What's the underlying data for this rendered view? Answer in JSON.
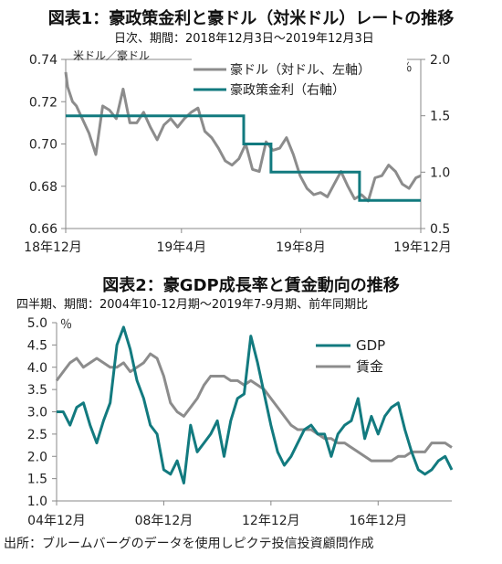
{
  "figure1": {
    "title": "図表1：豪政策金利と豪ドル（対米ドル）レートの推移",
    "subtitle": "日次、期間：2018年12月3日～2019年12月3日",
    "left_unit": "米ドル／豪ドル",
    "right_unit": "％",
    "legend": [
      "豪ドル（対ドル、左軸）",
      "豪政策金利（右軸）"
    ]
  },
  "figure2": {
    "title": "図表2：豪GDP成長率と賃金動向の推移",
    "subtitle": "四半期、期間：2004年10-12月期～2019年7-9月期、前年同期比",
    "y_unit": "％",
    "legend": [
      "GDP",
      "賃金"
    ]
  },
  "source": "出所：ブルームバーグのデータを使用しピクテ投信投資顧問作成",
  "colors": {
    "grey": "#8c8c8c",
    "teal": "#127a7f",
    "axis": "#888888"
  },
  "chart_data": [
    {
      "type": "line",
      "x_ticks": [
        "18年12月",
        "19年4月",
        "19年8月",
        "19年12月"
      ],
      "xlim": [
        "2018-12-03",
        "2019-12-03"
      ],
      "y_left_ticks": [
        "0.74",
        "0.72",
        "0.70",
        "0.68",
        "0.66"
      ],
      "y_left_lim": [
        0.66,
        0.74
      ],
      "y_right_ticks": [
        "2.0",
        "1.5",
        "1.0",
        "0.5"
      ],
      "y_right_lim": [
        0.5,
        2.0
      ],
      "grid": false,
      "legend_position": "top-right",
      "series": [
        {
          "name": "豪ドル（対ドル、左軸）",
          "axis": "left",
          "x": [
            "2018-12-03",
            "2018-12-05",
            "2018-12-10",
            "2018-12-14",
            "2018-12-20",
            "2018-12-27",
            "2019-01-03",
            "2019-01-10",
            "2019-01-17",
            "2019-01-24",
            "2019-01-31",
            "2019-02-07",
            "2019-02-14",
            "2019-02-21",
            "2019-02-28",
            "2019-03-07",
            "2019-03-14",
            "2019-03-21",
            "2019-03-28",
            "2019-04-04",
            "2019-04-11",
            "2019-04-18",
            "2019-04-25",
            "2019-05-02",
            "2019-05-09",
            "2019-05-16",
            "2019-05-23",
            "2019-05-30",
            "2019-06-06",
            "2019-06-13",
            "2019-06-20",
            "2019-06-27",
            "2019-07-04",
            "2019-07-11",
            "2019-07-18",
            "2019-07-25",
            "2019-08-01",
            "2019-08-08",
            "2019-08-15",
            "2019-08-22",
            "2019-08-29",
            "2019-09-05",
            "2019-09-12",
            "2019-09-19",
            "2019-09-26",
            "2019-10-03",
            "2019-10-10",
            "2019-10-17",
            "2019-10-24",
            "2019-10-31",
            "2019-11-07",
            "2019-11-14",
            "2019-11-21",
            "2019-11-28",
            "2019-12-03"
          ],
          "values": [
            0.734,
            0.727,
            0.72,
            0.718,
            0.712,
            0.705,
            0.695,
            0.718,
            0.716,
            0.712,
            0.726,
            0.71,
            0.71,
            0.715,
            0.708,
            0.702,
            0.709,
            0.712,
            0.708,
            0.712,
            0.715,
            0.717,
            0.706,
            0.703,
            0.698,
            0.692,
            0.69,
            0.693,
            0.7,
            0.688,
            0.687,
            0.701,
            0.697,
            0.698,
            0.703,
            0.695,
            0.685,
            0.679,
            0.676,
            0.677,
            0.675,
            0.681,
            0.687,
            0.68,
            0.674,
            0.676,
            0.673,
            0.684,
            0.685,
            0.69,
            0.687,
            0.681,
            0.679,
            0.684,
            0.685
          ]
        },
        {
          "name": "豪政策金利（右軸）",
          "axis": "right",
          "x": [
            "2018-12-03",
            "2019-06-04",
            "2019-07-02",
            "2019-10-01",
            "2019-12-03"
          ],
          "values": [
            1.5,
            1.25,
            1.0,
            0.75,
            0.75
          ],
          "step": true
        }
      ]
    },
    {
      "type": "line",
      "x_ticks": [
        "04年12月",
        "08年12月",
        "12年12月",
        "16年12月"
      ],
      "y_ticks": [
        "5.0",
        "4.5",
        "4.0",
        "3.5",
        "3.0",
        "2.5",
        "2.0",
        "1.5",
        "1.0"
      ],
      "ylim": [
        1.0,
        5.0
      ],
      "grid": false,
      "legend_position": "top-right",
      "categories": [
        "2004Q4",
        "2005Q1",
        "2005Q2",
        "2005Q3",
        "2005Q4",
        "2006Q1",
        "2006Q2",
        "2006Q3",
        "2006Q4",
        "2007Q1",
        "2007Q2",
        "2007Q3",
        "2007Q4",
        "2008Q1",
        "2008Q2",
        "2008Q3",
        "2008Q4",
        "2009Q1",
        "2009Q2",
        "2009Q3",
        "2009Q4",
        "2010Q1",
        "2010Q2",
        "2010Q3",
        "2010Q4",
        "2011Q1",
        "2011Q2",
        "2011Q3",
        "2011Q4",
        "2012Q1",
        "2012Q2",
        "2012Q3",
        "2012Q4",
        "2013Q1",
        "2013Q2",
        "2013Q3",
        "2013Q4",
        "2014Q1",
        "2014Q2",
        "2014Q3",
        "2014Q4",
        "2015Q1",
        "2015Q2",
        "2015Q3",
        "2015Q4",
        "2016Q1",
        "2016Q2",
        "2016Q3",
        "2016Q4",
        "2017Q1",
        "2017Q2",
        "2017Q3",
        "2017Q4",
        "2018Q1",
        "2018Q2",
        "2018Q3",
        "2018Q4",
        "2019Q1",
        "2019Q2",
        "2019Q3"
      ],
      "series": [
        {
          "name": "GDP",
          "values": [
            3.0,
            3.0,
            2.7,
            3.1,
            3.2,
            2.7,
            2.3,
            2.8,
            3.2,
            4.5,
            4.9,
            4.4,
            3.7,
            3.3,
            2.7,
            2.5,
            1.7,
            1.6,
            1.9,
            1.4,
            2.7,
            2.1,
            2.3,
            2.5,
            2.8,
            2.0,
            2.8,
            3.3,
            3.4,
            4.7,
            4.1,
            3.4,
            2.7,
            2.1,
            1.8,
            2.0,
            2.3,
            2.6,
            2.7,
            2.5,
            2.5,
            2.0,
            2.5,
            2.7,
            2.8,
            3.3,
            2.4,
            2.9,
            2.5,
            2.9,
            3.1,
            3.2,
            2.6,
            2.1,
            1.7,
            1.6,
            1.7,
            1.9,
            2.0,
            1.7
          ],
          "color": "#127a7f"
        },
        {
          "name": "賃金",
          "values": [
            3.7,
            3.9,
            4.1,
            4.2,
            4.0,
            4.1,
            4.2,
            4.1,
            4.0,
            4.0,
            4.1,
            3.9,
            4.0,
            4.1,
            4.3,
            4.2,
            3.8,
            3.2,
            3.0,
            2.9,
            3.1,
            3.3,
            3.6,
            3.8,
            3.8,
            3.8,
            3.7,
            3.7,
            3.6,
            3.7,
            3.6,
            3.5,
            3.3,
            3.1,
            2.9,
            2.7,
            2.6,
            2.6,
            2.6,
            2.5,
            2.4,
            2.4,
            2.3,
            2.3,
            2.2,
            2.1,
            2.0,
            1.9,
            1.9,
            1.9,
            1.9,
            2.0,
            2.0,
            2.1,
            2.1,
            2.1,
            2.3,
            2.3,
            2.3,
            2.2
          ],
          "color": "#8c8c8c"
        }
      ]
    }
  ]
}
